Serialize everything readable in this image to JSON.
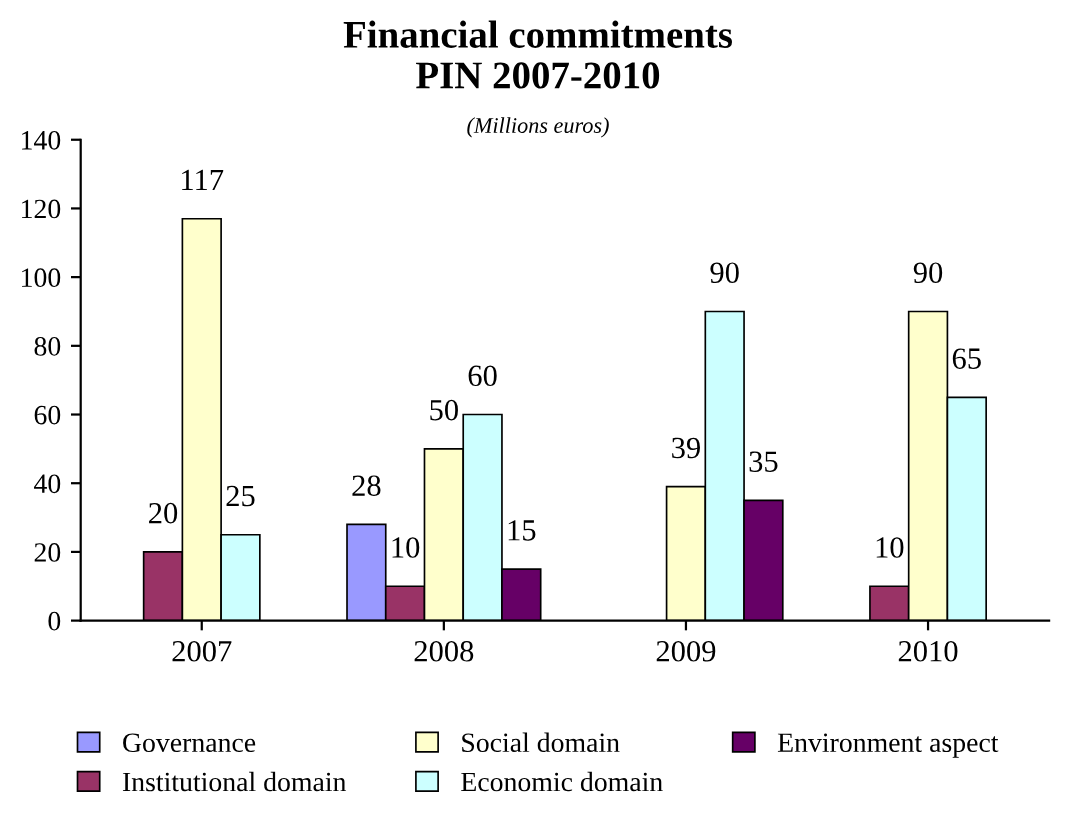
{
  "chart_data": {
    "type": "bar",
    "title": "Financial commitments\nPIN 2007-2010",
    "subtitle": "(Millions euros)",
    "categories": [
      "2007",
      "2008",
      "2009",
      "2010"
    ],
    "series": [
      {
        "name": "Governance",
        "color": "#9999ff",
        "values": [
          null,
          28,
          null,
          null
        ]
      },
      {
        "name": "Institutional domain",
        "color": "#993366",
        "values": [
          20,
          10,
          null,
          10
        ]
      },
      {
        "name": "Social domain",
        "color": "#ffffcc",
        "values": [
          117,
          50,
          39,
          90
        ]
      },
      {
        "name": "Economic domain",
        "color": "#ccffff",
        "values": [
          25,
          60,
          90,
          65
        ]
      },
      {
        "name": "Environment aspect",
        "color": "#660066",
        "values": [
          null,
          15,
          35,
          null
        ]
      }
    ],
    "ylim": [
      0,
      140
    ],
    "yticks": [
      0,
      20,
      40,
      60,
      80,
      100,
      120,
      140
    ],
    "data_labels": true,
    "legend": "bottom",
    "grid": false
  }
}
